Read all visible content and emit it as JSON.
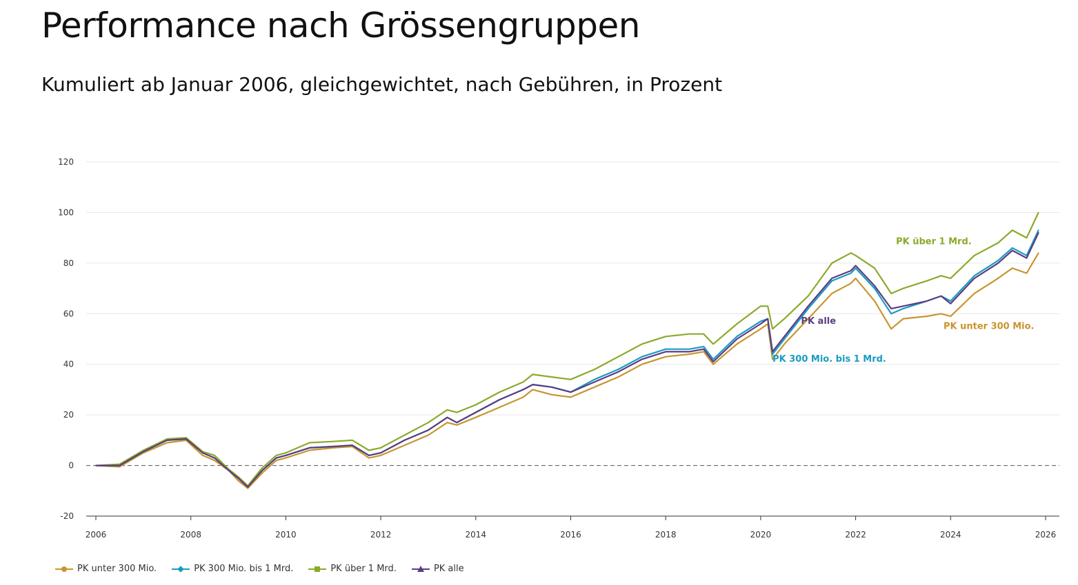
{
  "header": {
    "title": "Performance nach Grössengruppen",
    "subtitle": "Kumuliert ab Januar 2006, gleichgewichtet, nach Gebühren, in Prozent"
  },
  "chart_data": {
    "type": "line",
    "title": "Performance nach Grössengruppen",
    "subtitle": "Kumuliert ab Januar 2006, gleichgewichtet, nach Gebühren, in Prozent",
    "xlabel": "",
    "ylabel": "",
    "xlim": [
      2006,
      2026
    ],
    "ylim": [
      -20,
      120
    ],
    "x_ticks": [
      "2006",
      "2008",
      "2010",
      "2012",
      "2014",
      "2016",
      "2018",
      "2020",
      "2022",
      "2024",
      "2026"
    ],
    "y_ticks": [
      "-20",
      "0",
      "20",
      "40",
      "60",
      "80",
      "100",
      "120"
    ],
    "grid": "horizontal",
    "reference_line": 0,
    "x": [
      2006.0,
      2006.5,
      2007.0,
      2007.5,
      2007.9,
      2008.25,
      2008.5,
      2008.8,
      2009.0,
      2009.2,
      2009.5,
      2009.8,
      2010.0,
      2010.5,
      2011.0,
      2011.4,
      2011.75,
      2012.0,
      2012.5,
      2013.0,
      2013.4,
      2013.6,
      2014.0,
      2014.5,
      2015.0,
      2015.2,
      2015.6,
      2016.0,
      2016.5,
      2017.0,
      2017.5,
      2018.0,
      2018.5,
      2018.8,
      2019.0,
      2019.5,
      2020.0,
      2020.15,
      2020.25,
      2020.5,
      2021.0,
      2021.5,
      2021.9,
      2022.0,
      2022.4,
      2022.75,
      2023.0,
      2023.5,
      2023.8,
      2024.0,
      2024.5,
      2025.0,
      2025.3,
      2025.6,
      2025.85
    ],
    "series": [
      {
        "name": "PK unter 300 Mio.",
        "color": "#c8952e",
        "marker": "circle",
        "values": [
          0,
          -0.5,
          5,
          9,
          10,
          4,
          2,
          -2,
          -6,
          -9,
          -3,
          2,
          3,
          6,
          7,
          7.5,
          3,
          4,
          8,
          12,
          17,
          16,
          19,
          23,
          27,
          30,
          28,
          27,
          31,
          35,
          40,
          43,
          44,
          45,
          40,
          48,
          54,
          56,
          42,
          48,
          58,
          68,
          72,
          74,
          65,
          54,
          58,
          59,
          60,
          59,
          68,
          74,
          78,
          76,
          84
        ]
      },
      {
        "name": "PK 300 Mio. bis 1 Mrd.",
        "color": "#1a9bbf",
        "marker": "diamond",
        "values": [
          0,
          0,
          5.5,
          10,
          10.5,
          5,
          3,
          -2,
          -5,
          -8.5,
          -2,
          3,
          4,
          7,
          7.5,
          8,
          4,
          5,
          10,
          14,
          19,
          17,
          21,
          26,
          30,
          32,
          31,
          29,
          34,
          38,
          43,
          46,
          46,
          47,
          42,
          51,
          57,
          58,
          44,
          50,
          62,
          73,
          76,
          78,
          70,
          60,
          62,
          65,
          67,
          65,
          75,
          81,
          86,
          83,
          93
        ]
      },
      {
        "name": "PK über 1 Mrd.",
        "color": "#8aaa2a",
        "marker": "square",
        "values": [
          0,
          0.5,
          6,
          10.5,
          11,
          5.5,
          4,
          -1.5,
          -4.5,
          -8,
          -1,
          4,
          5,
          9,
          9.5,
          10,
          6,
          7,
          12,
          17,
          22,
          21,
          24,
          29,
          33,
          36,
          35,
          34,
          38,
          43,
          48,
          51,
          52,
          52,
          48,
          56,
          63,
          63,
          54,
          58,
          67,
          80,
          84,
          83,
          78,
          68,
          70,
          73,
          75,
          74,
          83,
          88,
          93,
          90,
          100
        ]
      },
      {
        "name": "PK alle",
        "color": "#5a3d82",
        "marker": "triangle",
        "values": [
          0,
          0,
          5.5,
          10,
          10.5,
          5,
          3,
          -2,
          -5,
          -8.5,
          -2,
          3,
          4,
          7,
          7.5,
          8,
          4,
          5,
          10,
          14,
          19,
          17,
          21,
          26,
          30,
          32,
          31,
          29,
          33,
          37,
          42,
          45,
          45,
          46,
          41,
          50,
          56,
          58,
          45,
          51,
          63,
          74,
          77,
          79,
          71,
          62,
          63,
          65,
          67,
          64,
          74,
          80,
          85,
          82,
          92
        ]
      }
    ],
    "annotations": [
      {
        "text": "PK über 1 Mrd.",
        "series": "PK über 1 Mrd.",
        "x": 2022.85,
        "y": 87.5
      },
      {
        "text": "PK alle",
        "series": "PK alle",
        "x": 2020.85,
        "y": 56
      },
      {
        "text": "PK unter 300 Mio.",
        "series": "PK unter 300 Mio.",
        "x": 2023.85,
        "y": 54
      },
      {
        "text": "PK 300 Mio. bis 1 Mrd.",
        "series": "PK 300 Mio. bis 1 Mrd.",
        "x": 2020.25,
        "y": 41
      }
    ],
    "legend": {
      "position": "bottom-left",
      "items": [
        "PK unter 300 Mio.",
        "PK 300 Mio. bis 1 Mrd.",
        "PK über 1 Mrd.",
        "PK alle"
      ]
    }
  }
}
